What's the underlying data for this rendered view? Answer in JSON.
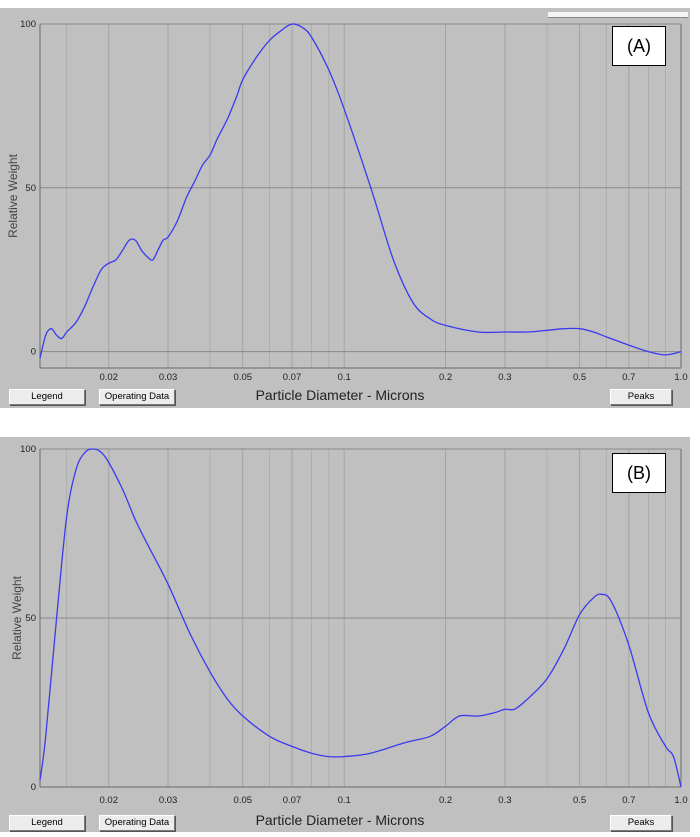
{
  "chart_data": [
    {
      "type": "line",
      "panel_tag": "(A)",
      "xlabel": "Particle Diameter - Microns",
      "ylabel": "Relative Weight",
      "x_scale": "log",
      "xlim": [
        0.0125,
        1.0
      ],
      "ylim": [
        -5,
        100
      ],
      "x_ticks": [
        "0.02",
        "0.03",
        "0.05",
        "0.07",
        "0.1",
        "0.2",
        "0.3",
        "0.5",
        "0.7",
        "1.0"
      ],
      "y_ticks": [
        "0",
        "50",
        "100"
      ],
      "grid": true,
      "line_color": "#3a3af0",
      "series": [
        {
          "x": [
            0.0125,
            0.013,
            0.0135,
            0.014,
            0.0145,
            0.015,
            0.016,
            0.017,
            0.018,
            0.019,
            0.02,
            0.021,
            0.022,
            0.023,
            0.024,
            0.025,
            0.026,
            0.027,
            0.028,
            0.029,
            0.03,
            0.032,
            0.034,
            0.036,
            0.038,
            0.04,
            0.042,
            0.045,
            0.048,
            0.05,
            0.055,
            0.06,
            0.065,
            0.07,
            0.075,
            0.08,
            0.09,
            0.1,
            0.12,
            0.14,
            0.16,
            0.18,
            0.2,
            0.25,
            0.3,
            0.35,
            0.4,
            0.45,
            0.5,
            0.55,
            0.6,
            0.7,
            0.8,
            0.9,
            1.0
          ],
          "y": [
            -2,
            5,
            7,
            5,
            4,
            6,
            9,
            14,
            20,
            25,
            27,
            28,
            31,
            34,
            34,
            31,
            29,
            28,
            31,
            34,
            35,
            40,
            47,
            52,
            57,
            60,
            65,
            71,
            78,
            83,
            90,
            95,
            98,
            100,
            99,
            96,
            86,
            74,
            50,
            28,
            15,
            10,
            8,
            6,
            6,
            6,
            6.5,
            7,
            7,
            6,
            4.5,
            2,
            0,
            -1,
            0
          ]
        }
      ]
    },
    {
      "type": "line",
      "panel_tag": "(B)",
      "xlabel": "Particle Diameter - Microns",
      "ylabel": "Relative Weight",
      "x_scale": "log",
      "xlim": [
        0.0125,
        1.0
      ],
      "ylim": [
        0,
        100
      ],
      "x_ticks": [
        "0.02",
        "0.03",
        "0.05",
        "0.07",
        "0.1",
        "0.2",
        "0.3",
        "0.5",
        "0.7",
        "1.0"
      ],
      "y_ticks": [
        "0",
        "50",
        "100"
      ],
      "grid": true,
      "line_color": "#3a3af0",
      "series": [
        {
          "x": [
            0.0125,
            0.013,
            0.014,
            0.015,
            0.016,
            0.017,
            0.018,
            0.019,
            0.02,
            0.022,
            0.024,
            0.026,
            0.03,
            0.035,
            0.04,
            0.045,
            0.05,
            0.06,
            0.07,
            0.08,
            0.09,
            0.1,
            0.12,
            0.15,
            0.18,
            0.2,
            0.22,
            0.25,
            0.28,
            0.3,
            0.32,
            0.35,
            0.4,
            0.45,
            0.5,
            0.55,
            0.58,
            0.62,
            0.7,
            0.8,
            0.9,
            0.95,
            1.0
          ],
          "y": [
            2,
            15,
            50,
            80,
            94,
            99,
            100,
            99,
            96,
            88,
            79,
            72,
            60,
            45,
            34,
            26,
            21,
            15,
            12,
            10,
            9,
            9,
            10,
            13,
            15,
            18,
            21,
            21,
            22,
            23,
            23,
            26,
            32,
            41,
            51,
            56,
            57,
            55,
            42,
            22,
            12,
            9,
            0
          ]
        }
      ]
    }
  ],
  "buttons": {
    "legend": "Legend",
    "operating_data": "Operating Data",
    "peaks": "Peaks"
  }
}
